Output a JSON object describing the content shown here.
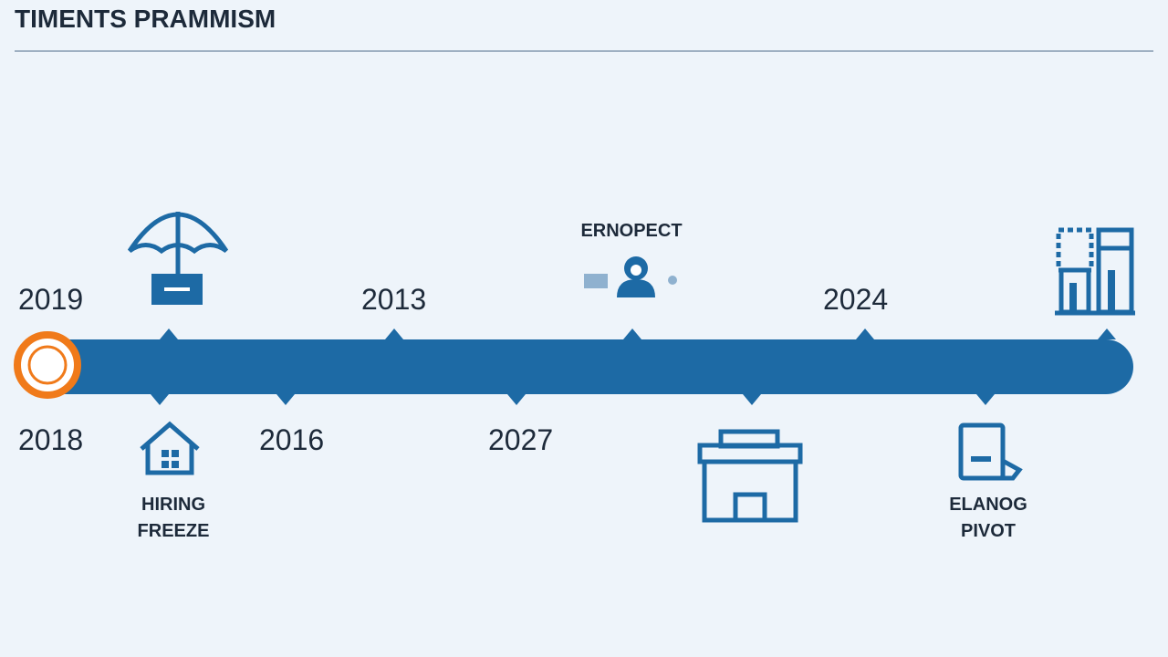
{
  "title": "TIMENTS PRAMMISM",
  "top_years": [
    "2019",
    "2013",
    "2024"
  ],
  "bottom_years": [
    "2018",
    "2016",
    "2027"
  ],
  "events": [
    {
      "lines": [
        "ERNOPECT"
      ]
    },
    {
      "lines": [
        "HIRING",
        "FREEZE"
      ]
    },
    {
      "lines": [
        "ELANOG",
        "PIVOT"
      ]
    }
  ]
}
